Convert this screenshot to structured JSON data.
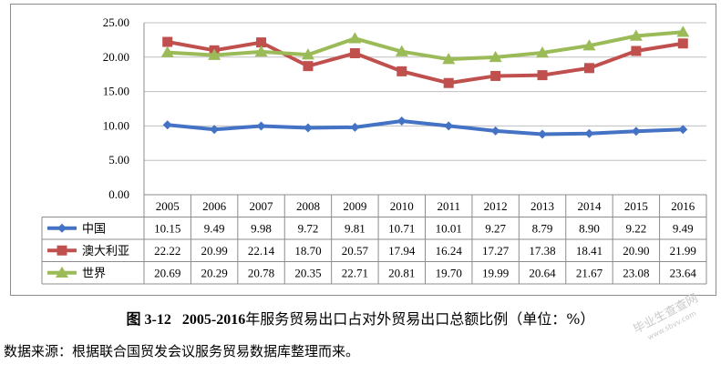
{
  "chart_data": {
    "type": "line",
    "title": "",
    "xlabel": "",
    "ylabel": "",
    "categories": [
      "2005",
      "2006",
      "2007",
      "2008",
      "2009",
      "2010",
      "2011",
      "2012",
      "2013",
      "2014",
      "2015",
      "2016"
    ],
    "ylim": [
      0,
      25
    ],
    "yticks": [
      "0.00",
      "5.00",
      "10.00",
      "15.00",
      "20.00",
      "25.00"
    ],
    "grid": true,
    "legend": "data-table",
    "series": [
      {
        "name": "中国",
        "color": "#4472c4",
        "marker": "diamond",
        "values": [
          10.15,
          9.49,
          9.98,
          9.72,
          9.81,
          10.71,
          10.01,
          9.27,
          8.79,
          8.9,
          9.22,
          9.49
        ],
        "labels": [
          "10.15",
          "9.49",
          "9.98",
          "9.72",
          "9.81",
          "10.71",
          "10.01",
          "9.27",
          "8.79",
          "8.90",
          "9.22",
          "9.49"
        ]
      },
      {
        "name": "澳大利亚",
        "color": "#c0504d",
        "marker": "square",
        "values": [
          22.22,
          20.99,
          22.14,
          18.7,
          20.57,
          17.94,
          16.24,
          17.27,
          17.38,
          18.41,
          20.9,
          21.99
        ],
        "labels": [
          "22.22",
          "20.99",
          "22.14",
          "18.70",
          "20.57",
          "17.94",
          "16.24",
          "17.27",
          "17.38",
          "18.41",
          "20.90",
          "21.99"
        ]
      },
      {
        "name": "世界",
        "color": "#9bbb59",
        "marker": "triangle",
        "values": [
          20.69,
          20.29,
          20.78,
          20.35,
          22.71,
          20.81,
          19.7,
          19.99,
          20.64,
          21.67,
          23.08,
          23.64
        ],
        "labels": [
          "20.69",
          "20.29",
          "20.78",
          "20.35",
          "22.71",
          "20.81",
          "19.70",
          "19.99",
          "20.64",
          "21.67",
          "23.08",
          "23.64"
        ]
      }
    ]
  },
  "caption": {
    "figure_number": "图 3-12",
    "years": "2005-2016",
    "text": "年服务贸易出口占对外贸易出口总额比例（单位：%）"
  },
  "source": "数据来源：根据联合国贸发会议服务贸易数据库整理而来。",
  "watermark": {
    "text": "毕业生查查网",
    "url": "www.sbvv.com"
  }
}
